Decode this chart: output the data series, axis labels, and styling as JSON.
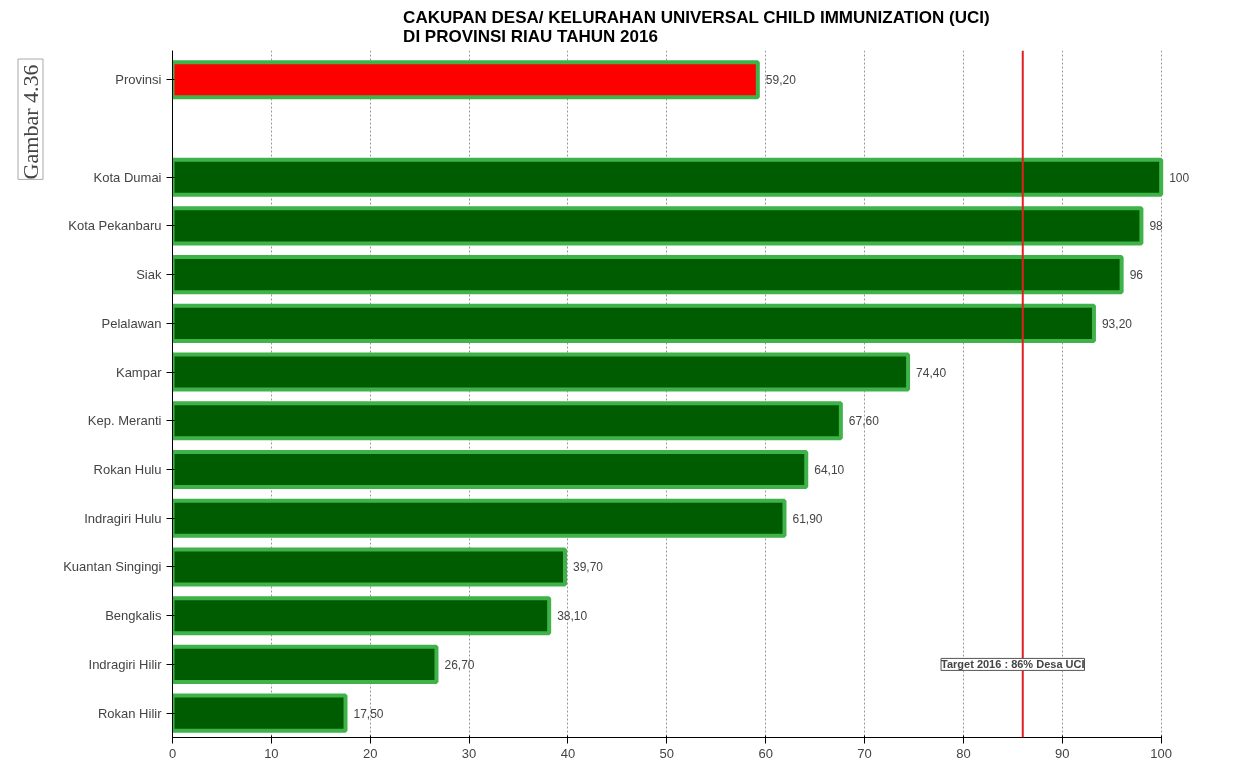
{
  "chart_data": {
    "type": "bar",
    "orientation": "horizontal",
    "title": "CAKUPAN DESA/ KELURAHAN UNIVERSAL CHILD IMMUNIZATION (UCI)\nDI PROVINSI RIAU TAHUN 2016",
    "categories": [
      "Provinsi",
      null,
      "Kota Dumai",
      "Kota Pekanbaru",
      "Siak",
      "Pelalawan",
      "Kampar",
      "Kep. Meranti",
      "Rokan Hulu",
      "Indragiri Hulu",
      "Kuantan Singingi",
      "Bengkalis",
      "Indragiri Hilir",
      "Rokan Hilir"
    ],
    "values": [
      59.2,
      null,
      100,
      98,
      96,
      93.2,
      74.4,
      67.6,
      64.1,
      61.9,
      39.7,
      38.1,
      26.7,
      17.5
    ],
    "value_labels": [
      "59,20",
      null,
      "100",
      "98",
      "96",
      "93,20",
      "74,40",
      "67,60",
      "64,10",
      "61,90",
      "39,70",
      "38,10",
      "26,70",
      "17,50"
    ],
    "colors": [
      "#ff0000",
      null,
      "#005c00",
      "#005c00",
      "#005c00",
      "#005c00",
      "#005c00",
      "#005c00",
      "#005c00",
      "#005c00",
      "#005c00",
      "#005c00",
      "#005c00",
      "#005c00"
    ],
    "xlim": [
      0,
      100
    ],
    "xticks": [
      0,
      10,
      20,
      30,
      40,
      50,
      60,
      70,
      80,
      90,
      100
    ],
    "grid": "x",
    "ref_lines": [
      {
        "axis": "x",
        "value": 86,
        "label": "Target 2016 : 86% Desa UCI",
        "color": "#e02020"
      }
    ],
    "annotations": [
      "Gambar  4.36"
    ]
  }
}
